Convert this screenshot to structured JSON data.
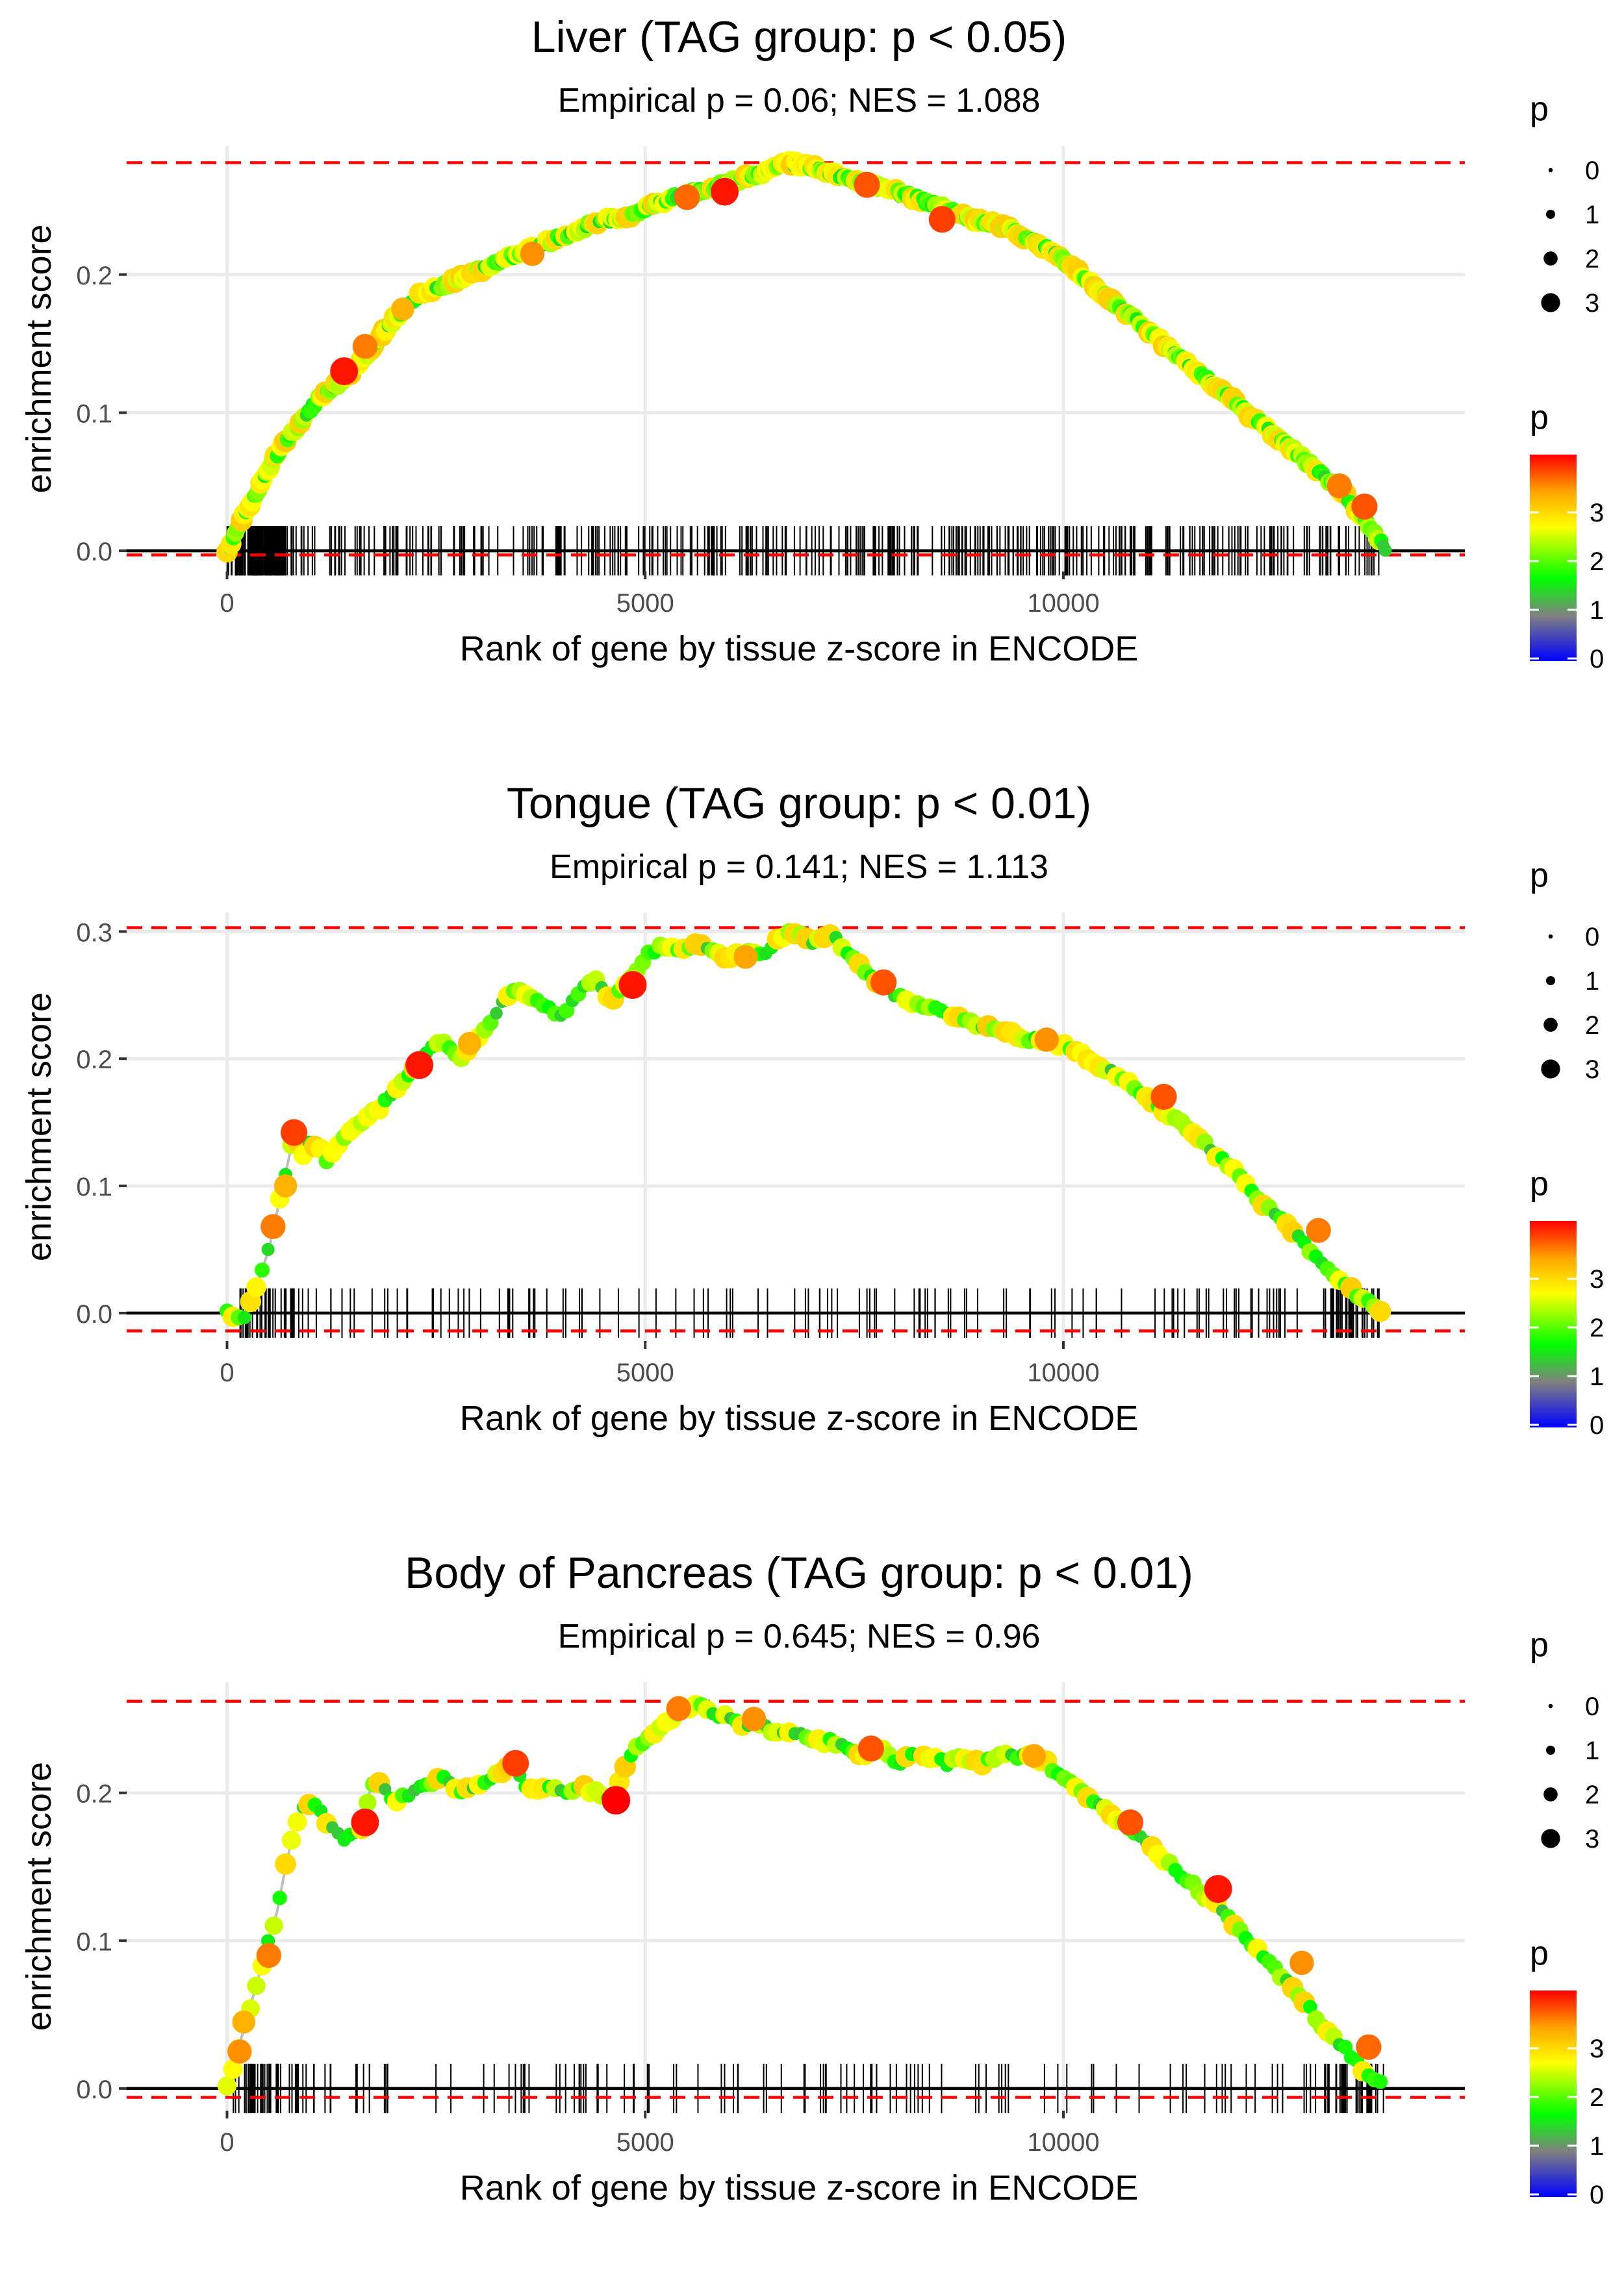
{
  "chart_data": [
    {
      "type": "line",
      "title": "Liver (TAG group: p < 0.05)",
      "subtitle": "Empirical p = 0.06; NES = 1.088",
      "xlabel": "Rank of gene by tissue z-score in ENCODE",
      "ylabel": "enrichment score",
      "xlim": [
        -1200,
        14800
      ],
      "ylim": [
        -0.015,
        0.293
      ],
      "xticks": [
        0,
        5000,
        10000
      ],
      "xtick_labels": [
        "0",
        "5000",
        "10000"
      ],
      "yticks": [
        0.0,
        0.1,
        0.2
      ],
      "ytick_labels": [
        "0.0",
        "0.1",
        "0.2"
      ],
      "max_es": 0.281,
      "min_es": -0.003,
      "curve_x": [
        0,
        150,
        300,
        500,
        700,
        900,
        1100,
        1300,
        1500,
        1700,
        1900,
        2100,
        2300,
        2500,
        2700,
        2900,
        3100,
        3300,
        3500,
        3700,
        3900,
        4100,
        4300,
        4500,
        4700,
        4900,
        5100,
        5300,
        5500,
        5700,
        5900,
        6100,
        6300,
        6500,
        6700,
        6900,
        7100,
        7300,
        7500,
        7700,
        7900,
        8100,
        8300,
        8500,
        8700,
        8900,
        9100,
        9300,
        9500,
        9700,
        9900,
        10100,
        10300,
        10500,
        10700,
        10900,
        11100,
        11300,
        11500,
        11700,
        11900,
        12100,
        12300,
        12500,
        12700,
        12900,
        13100,
        13300,
        13500,
        13700,
        13850
      ],
      "curve_y": [
        0.0,
        0.02,
        0.035,
        0.06,
        0.08,
        0.095,
        0.11,
        0.12,
        0.13,
        0.145,
        0.16,
        0.175,
        0.185,
        0.19,
        0.195,
        0.2,
        0.205,
        0.21,
        0.215,
        0.22,
        0.225,
        0.23,
        0.235,
        0.24,
        0.24,
        0.245,
        0.25,
        0.255,
        0.26,
        0.26,
        0.265,
        0.268,
        0.272,
        0.276,
        0.281,
        0.279,
        0.276,
        0.272,
        0.268,
        0.265,
        0.262,
        0.258,
        0.254,
        0.25,
        0.245,
        0.24,
        0.238,
        0.235,
        0.228,
        0.222,
        0.215,
        0.205,
        0.195,
        0.185,
        0.175,
        0.165,
        0.155,
        0.145,
        0.135,
        0.125,
        0.115,
        0.105,
        0.095,
        0.085,
        0.075,
        0.065,
        0.055,
        0.045,
        0.03,
        0.015,
        0.002
      ],
      "highlight_points": [
        {
          "x": 1400,
          "y": 0.13,
          "p": 3.8
        },
        {
          "x": 1650,
          "y": 0.148,
          "p": 3.3
        },
        {
          "x": 2100,
          "y": 0.175,
          "p": 3.0
        },
        {
          "x": 3650,
          "y": 0.215,
          "p": 3.2
        },
        {
          "x": 5500,
          "y": 0.256,
          "p": 3.4
        },
        {
          "x": 5950,
          "y": 0.26,
          "p": 3.8
        },
        {
          "x": 7650,
          "y": 0.265,
          "p": 3.5
        },
        {
          "x": 8550,
          "y": 0.24,
          "p": 3.6
        },
        {
          "x": 13300,
          "y": 0.047,
          "p": 3.3
        },
        {
          "x": 13600,
          "y": 0.032,
          "p": 3.5
        }
      ],
      "rug_density": "dense",
      "legend_size": {
        "title": "p",
        "labels": [
          "0",
          "1",
          "2",
          "3"
        ]
      },
      "legend_color": {
        "title": "p",
        "labels": [
          "0",
          "1",
          "2",
          "3"
        ]
      }
    },
    {
      "type": "line",
      "title": "Tongue (TAG group: p < 0.01)",
      "subtitle": "Empirical p = 0.141; NES = 1.113",
      "xlabel": "Rank of gene by tissue z-score in ENCODE",
      "ylabel": "enrichment score",
      "xlim": [
        -1200,
        14800
      ],
      "ylim": [
        -0.022,
        0.315
      ],
      "xticks": [
        0,
        5000,
        10000
      ],
      "xtick_labels": [
        "0",
        "5000",
        "10000"
      ],
      "yticks": [
        0.0,
        0.1,
        0.2,
        0.3
      ],
      "ytick_labels": [
        "0.0",
        "0.1",
        "0.2",
        "0.3"
      ],
      "max_es": 0.303,
      "min_es": -0.014,
      "curve_x": [
        0,
        200,
        300,
        400,
        500,
        600,
        700,
        800,
        900,
        1000,
        1100,
        1200,
        1300,
        1400,
        1600,
        1800,
        2000,
        2200,
        2400,
        2600,
        2800,
        3000,
        3200,
        3400,
        3600,
        3800,
        4000,
        4200,
        4400,
        4600,
        4800,
        5000,
        5200,
        5400,
        5600,
        5800,
        6000,
        6200,
        6400,
        6600,
        6800,
        7000,
        7200,
        7400,
        7600,
        7800,
        8000,
        8200,
        8400,
        8600,
        8800,
        9000,
        9200,
        9400,
        9600,
        9800,
        10000,
        10200,
        10400,
        10600,
        10800,
        11000,
        11200,
        11400,
        11600,
        11800,
        12000,
        12200,
        12400,
        12600,
        12800,
        13000,
        13200,
        13400,
        13600,
        13800
      ],
      "curve_y": [
        0.0,
        -0.005,
        0.01,
        0.03,
        0.05,
        0.08,
        0.11,
        0.14,
        0.125,
        0.135,
        0.13,
        0.12,
        0.13,
        0.14,
        0.15,
        0.16,
        0.175,
        0.19,
        0.205,
        0.215,
        0.2,
        0.215,
        0.235,
        0.255,
        0.25,
        0.24,
        0.235,
        0.25,
        0.265,
        0.245,
        0.26,
        0.28,
        0.29,
        0.285,
        0.29,
        0.285,
        0.28,
        0.285,
        0.28,
        0.295,
        0.3,
        0.29,
        0.3,
        0.285,
        0.27,
        0.26,
        0.25,
        0.245,
        0.24,
        0.235,
        0.23,
        0.225,
        0.225,
        0.22,
        0.215,
        0.215,
        0.21,
        0.205,
        0.195,
        0.19,
        0.18,
        0.17,
        0.16,
        0.15,
        0.14,
        0.125,
        0.115,
        0.1,
        0.085,
        0.075,
        0.06,
        0.045,
        0.03,
        0.02,
        0.01,
        0.003
      ],
      "highlight_points": [
        {
          "x": 550,
          "y": 0.068,
          "p": 3.3
        },
        {
          "x": 700,
          "y": 0.1,
          "p": 3.0
        },
        {
          "x": 800,
          "y": 0.142,
          "p": 3.6
        },
        {
          "x": 2300,
          "y": 0.195,
          "p": 3.8
        },
        {
          "x": 2900,
          "y": 0.212,
          "p": 3.0
        },
        {
          "x": 4850,
          "y": 0.258,
          "p": 3.8
        },
        {
          "x": 6200,
          "y": 0.28,
          "p": 3.1
        },
        {
          "x": 7850,
          "y": 0.26,
          "p": 3.5
        },
        {
          "x": 9800,
          "y": 0.215,
          "p": 3.2
        },
        {
          "x": 11200,
          "y": 0.17,
          "p": 3.5
        },
        {
          "x": 13050,
          "y": 0.065,
          "p": 3.3
        }
      ],
      "rug_density": "sparse",
      "legend_size": {
        "title": "p",
        "labels": [
          "0",
          "1",
          "2",
          "3"
        ]
      },
      "legend_color": {
        "title": "p",
        "labels": [
          "0",
          "1",
          "2",
          "3"
        ]
      }
    },
    {
      "type": "line",
      "title": "Body of Pancreas (TAG group: p < 0.01)",
      "subtitle": "Empirical p = 0.645; NES = 0.96",
      "xlabel": "Rank of gene by tissue z-score in ENCODE",
      "ylabel": "enrichment score",
      "xlim": [
        -1200,
        14800
      ],
      "ylim": [
        -0.015,
        0.275
      ],
      "xticks": [
        0,
        5000,
        10000
      ],
      "xtick_labels": [
        "0",
        "5000",
        "10000"
      ],
      "yticks": [
        0.0,
        0.1,
        0.2
      ],
      "ytick_labels": [
        "0.0",
        "0.1",
        "0.2"
      ],
      "max_es": 0.262,
      "min_es": -0.006,
      "curve_x": [
        0,
        100,
        200,
        300,
        400,
        500,
        600,
        700,
        800,
        900,
        1000,
        1200,
        1400,
        1600,
        1700,
        1800,
        2000,
        2200,
        2400,
        2600,
        2800,
        3000,
        3200,
        3400,
        3600,
        3800,
        4000,
        4200,
        4400,
        4600,
        4700,
        4800,
        5000,
        5200,
        5400,
        5600,
        5800,
        6000,
        6200,
        6400,
        6600,
        6800,
        7000,
        7200,
        7400,
        7600,
        7800,
        8000,
        8200,
        8400,
        8600,
        8800,
        9000,
        9200,
        9400,
        9600,
        9800,
        10000,
        10200,
        10400,
        10600,
        10800,
        11000,
        11200,
        11400,
        11600,
        11800,
        12000,
        12200,
        12400,
        12600,
        12800,
        13000,
        13200,
        13400,
        13600,
        13800
      ],
      "curve_y": [
        0.0,
        0.02,
        0.04,
        0.06,
        0.08,
        0.1,
        0.12,
        0.15,
        0.175,
        0.19,
        0.195,
        0.18,
        0.17,
        0.175,
        0.2,
        0.21,
        0.195,
        0.2,
        0.205,
        0.21,
        0.2,
        0.205,
        0.21,
        0.22,
        0.2,
        0.205,
        0.2,
        0.205,
        0.2,
        0.195,
        0.21,
        0.225,
        0.235,
        0.245,
        0.255,
        0.26,
        0.255,
        0.25,
        0.245,
        0.245,
        0.24,
        0.24,
        0.235,
        0.235,
        0.23,
        0.225,
        0.23,
        0.22,
        0.225,
        0.225,
        0.22,
        0.225,
        0.22,
        0.225,
        0.225,
        0.225,
        0.22,
        0.21,
        0.2,
        0.195,
        0.185,
        0.175,
        0.165,
        0.155,
        0.145,
        0.135,
        0.125,
        0.115,
        0.1,
        0.09,
        0.075,
        0.065,
        0.05,
        0.035,
        0.025,
        0.012,
        0.003
      ],
      "highlight_points": [
        {
          "x": 150,
          "y": 0.025,
          "p": 3.2
        },
        {
          "x": 200,
          "y": 0.045,
          "p": 3.0
        },
        {
          "x": 500,
          "y": 0.09,
          "p": 3.3
        },
        {
          "x": 1650,
          "y": 0.18,
          "p": 3.8
        },
        {
          "x": 3450,
          "y": 0.22,
          "p": 3.6
        },
        {
          "x": 4650,
          "y": 0.195,
          "p": 3.9
        },
        {
          "x": 5400,
          "y": 0.257,
          "p": 3.3
        },
        {
          "x": 6300,
          "y": 0.25,
          "p": 3.2
        },
        {
          "x": 7700,
          "y": 0.23,
          "p": 3.5
        },
        {
          "x": 9650,
          "y": 0.225,
          "p": 3.1
        },
        {
          "x": 10800,
          "y": 0.18,
          "p": 3.5
        },
        {
          "x": 11850,
          "y": 0.135,
          "p": 3.8
        },
        {
          "x": 12850,
          "y": 0.085,
          "p": 3.2
        },
        {
          "x": 13650,
          "y": 0.028,
          "p": 3.4
        }
      ],
      "rug_density": "sparse",
      "legend_size": {
        "title": "p",
        "labels": [
          "0",
          "1",
          "2",
          "3"
        ]
      },
      "legend_color": {
        "title": "p",
        "labels": [
          "0",
          "1",
          "2",
          "3"
        ]
      }
    }
  ],
  "colors": {
    "background": "#ffffff",
    "grid": "#ebebeb",
    "threshold_line": "#ff0000",
    "zero_line": "#000000",
    "curve": "#bebebe",
    "rug": "#000000",
    "text": "#000000",
    "tick_text": "#4d4d4d",
    "color_scale": [
      "#0000ff",
      "#808080",
      "#00ff00",
      "#ffff00",
      "#ff0000"
    ]
  }
}
